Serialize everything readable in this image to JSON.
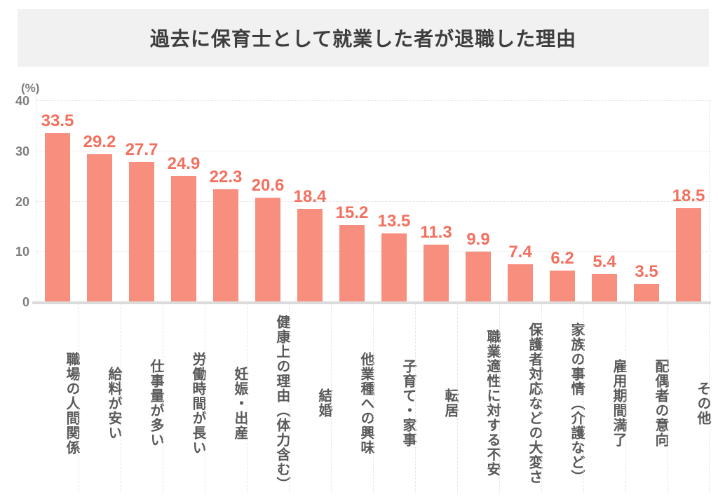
{
  "title": "過去に保育士として就業した者が退職した理由",
  "chart_data": {
    "type": "bar",
    "title": "過去に保育士として就業した者が退職した理由",
    "unit_label": "(%)",
    "xlabel": "",
    "ylabel": "(%)",
    "ylim": [
      0,
      40
    ],
    "yticks": [
      0,
      10,
      20,
      30,
      40
    ],
    "grid": "horizontal-dotted",
    "legend": "none",
    "categories": [
      "職場の人間関係",
      "給料が安い",
      "仕事量が多い",
      "労働時間が長い",
      "妊娠・出産",
      "健康上の理由（体力含む）",
      "結婚",
      "他業種への興味",
      "子育て・家事",
      "転居",
      "職業適性に対する不安",
      "保護者対応などの大変さ",
      "家族の事情（介護など）",
      "雇用期間満了",
      "配偶者の意向",
      "その他"
    ],
    "values": [
      33.5,
      29.2,
      27.7,
      24.9,
      22.3,
      20.6,
      18.4,
      15.2,
      13.5,
      11.3,
      9.9,
      7.4,
      6.2,
      5.4,
      3.5,
      18.5
    ]
  },
  "colors": {
    "bar": "#F78E7E",
    "value_label": "#F3705F",
    "axis_tick": "#7E7E7E",
    "category_label": "#595959",
    "title_text": "#3D3D3D",
    "title_banner_bg": "#F1F1F1",
    "gridline": "#E2E2E2",
    "baseline": "#DBDBDB"
  }
}
